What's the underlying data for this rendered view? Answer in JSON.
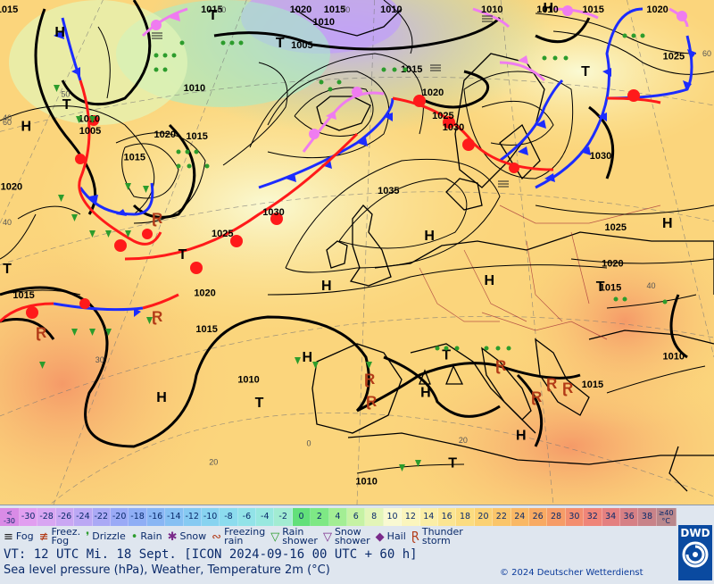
{
  "map": {
    "pressure_centers": [
      {
        "type": "H",
        "lon": -26,
        "lat": 60
      },
      {
        "type": "H",
        "lon": -15,
        "lat": 38
      },
      {
        "type": "H",
        "lon": 0,
        "lat": 42
      },
      {
        "type": "H",
        "lon": 2,
        "lat": 48
      },
      {
        "type": "H",
        "lon": 12,
        "lat": 39
      },
      {
        "type": "H",
        "lon": 12,
        "lat": 52
      },
      {
        "type": "H",
        "lon": 18,
        "lat": 48
      },
      {
        "type": "H",
        "lon": 22,
        "lat": 35
      },
      {
        "type": "H",
        "lon": 35,
        "lat": 52
      },
      {
        "type": "H",
        "lon": -22,
        "lat": 68
      },
      {
        "type": "H",
        "lon": 22,
        "lat": 74
      },
      {
        "type": "T",
        "lon": -22,
        "lat": 62
      },
      {
        "type": "T",
        "lon": -5,
        "lat": 38
      },
      {
        "type": "T",
        "lon": -30,
        "lat": 48
      },
      {
        "type": "T",
        "lon": -12,
        "lat": 50
      },
      {
        "type": "T",
        "lon": -2,
        "lat": 68
      },
      {
        "type": "T",
        "lon": 14,
        "lat": 42
      },
      {
        "type": "T",
        "lon": 26,
        "lat": 65
      },
      {
        "type": "T",
        "lon": 29,
        "lat": 47
      },
      {
        "type": "T",
        "lon": 15,
        "lat": 33
      },
      {
        "type": "T",
        "lon": -8,
        "lat": 70
      }
    ],
    "isobar_labels": [
      {
        "text": "1015",
        "lon": -28,
        "lat": 70
      },
      {
        "text": "1015",
        "lon": -16,
        "lat": 58
      },
      {
        "text": "1010",
        "lon": -20,
        "lat": 61
      },
      {
        "text": "1005",
        "lon": -20,
        "lat": 60
      },
      {
        "text": "1020",
        "lon": -13,
        "lat": 60
      },
      {
        "text": "1020",
        "lon": -28,
        "lat": 55
      },
      {
        "text": "1015",
        "lon": -28,
        "lat": 46
      },
      {
        "text": "1015",
        "lon": -8,
        "lat": 72
      },
      {
        "text": "1020",
        "lon": 0,
        "lat": 74
      },
      {
        "text": "1010",
        "lon": 8,
        "lat": 78
      },
      {
        "text": "1015",
        "lon": 3,
        "lat": 72
      },
      {
        "text": "1010",
        "lon": 2,
        "lat": 70
      },
      {
        "text": "1005",
        "lon": 0,
        "lat": 68
      },
      {
        "text": "1010",
        "lon": -10,
        "lat": 64
      },
      {
        "text": "1015",
        "lon": -10,
        "lat": 60
      },
      {
        "text": "1015",
        "lon": 10,
        "lat": 66
      },
      {
        "text": "1020",
        "lon": 12,
        "lat": 64
      },
      {
        "text": "1025",
        "lon": 13,
        "lat": 62
      },
      {
        "text": "1030",
        "lon": 14,
        "lat": 61
      },
      {
        "text": "1035",
        "lon": 8,
        "lat": 56
      },
      {
        "text": "1030",
        "lon": -3,
        "lat": 54
      },
      {
        "text": "1025",
        "lon": -8,
        "lat": 52
      },
      {
        "text": "1020",
        "lon": -10,
        "lat": 47
      },
      {
        "text": "1015",
        "lon": -10,
        "lat": 44
      },
      {
        "text": "1010",
        "lon": -6,
        "lat": 40
      },
      {
        "text": "1030",
        "lon": 28,
        "lat": 58
      },
      {
        "text": "1025",
        "lon": 30,
        "lat": 52
      },
      {
        "text": "1020",
        "lon": 30,
        "lat": 49
      },
      {
        "text": "1015",
        "lon": 30,
        "lat": 47
      },
      {
        "text": "1015",
        "lon": 29,
        "lat": 39
      },
      {
        "text": "1010",
        "lon": 37,
        "lat": 41
      },
      {
        "text": "1010",
        "lon": 6,
        "lat": 32
      },
      {
        "text": "1010",
        "lon": 17,
        "lat": 74
      },
      {
        "text": "1015",
        "lon": 26,
        "lat": 74
      },
      {
        "text": "1020",
        "lon": 32,
        "lat": 71
      },
      {
        "text": "1025",
        "lon": 34,
        "lat": 66
      },
      {
        "text": "1010",
        "lon": 22,
        "lat": 73
      }
    ],
    "graticule_labels": [
      {
        "text": "60",
        "lon": -37,
        "lat": 60
      },
      {
        "text": "50",
        "lon": -22,
        "lat": 63
      },
      {
        "text": "40",
        "lon": -45,
        "lat": 60
      },
      {
        "text": "40",
        "lon": -30,
        "lat": 52
      },
      {
        "text": "30",
        "lon": -21,
        "lat": 41
      },
      {
        "text": "20",
        "lon": -10,
        "lat": 33
      },
      {
        "text": "60",
        "lon": -7,
        "lat": 75
      },
      {
        "text": "70",
        "lon": 4,
        "lat": 76
      },
      {
        "text": "0",
        "lon": 0,
        "lat": 35
      },
      {
        "text": "20",
        "lon": 16,
        "lat": 35
      },
      {
        "text": "40",
        "lon": 34,
        "lat": 47
      },
      {
        "text": "60",
        "lon": 40,
        "lat": 66
      }
    ]
  },
  "legend": {
    "scale": [
      {
        "label": "<\n-30",
        "color": "#d98be6"
      },
      {
        "label": "-30",
        "color": "#e19ff0"
      },
      {
        "label": "-28",
        "color": "#d8a6f2"
      },
      {
        "label": "-26",
        "color": "#caa7f3"
      },
      {
        "label": "-24",
        "color": "#bba8f4"
      },
      {
        "label": "-22",
        "color": "#aaa9f5"
      },
      {
        "label": "-20",
        "color": "#9aaaf6"
      },
      {
        "label": "-18",
        "color": "#8faef5"
      },
      {
        "label": "-16",
        "color": "#89b6f4"
      },
      {
        "label": "-14",
        "color": "#86c0f3"
      },
      {
        "label": "-12",
        "color": "#86caf2"
      },
      {
        "label": "-10",
        "color": "#88d3f0"
      },
      {
        "label": "-8",
        "color": "#8cdcee"
      },
      {
        "label": "-6",
        "color": "#92e3e8"
      },
      {
        "label": "-4",
        "color": "#98e8df"
      },
      {
        "label": "-2",
        "color": "#a2ecd2"
      },
      {
        "label": "0",
        "color": "#62e07a"
      },
      {
        "label": "2",
        "color": "#7ee885"
      },
      {
        "label": "4",
        "color": "#a3ee94"
      },
      {
        "label": "6",
        "color": "#c6f2a4"
      },
      {
        "label": "8",
        "color": "#e3f5b8"
      },
      {
        "label": "10",
        "color": "#f9f9d2"
      },
      {
        "label": "12",
        "color": "#fbf5bd"
      },
      {
        "label": "14",
        "color": "#fbeea6"
      },
      {
        "label": "16",
        "color": "#fbe592"
      },
      {
        "label": "18",
        "color": "#fbdc80"
      },
      {
        "label": "20",
        "color": "#fbd173"
      },
      {
        "label": "22",
        "color": "#fac56a"
      },
      {
        "label": "24",
        "color": "#f9b865"
      },
      {
        "label": "26",
        "color": "#f8aa63"
      },
      {
        "label": "28",
        "color": "#f69c67"
      },
      {
        "label": "30",
        "color": "#f38e6f"
      },
      {
        "label": "32",
        "color": "#ef8579"
      },
      {
        "label": "34",
        "color": "#e48080"
      },
      {
        "label": "36",
        "color": "#d68085"
      },
      {
        "label": "38",
        "color": "#c88389"
      },
      {
        "label": "≥40\n°C",
        "color": "#b9878c"
      }
    ],
    "weather": [
      {
        "icon": "fog-icon",
        "glyph": "≡",
        "label": "Fog"
      },
      {
        "icon": "freezing-fog-icon",
        "glyph": "≢",
        "label": "Freez.\nFog"
      },
      {
        "icon": "drizzle-icon",
        "glyph": "❜",
        "label": "Drizzle"
      },
      {
        "icon": "rain-icon",
        "glyph": "•",
        "label": "Rain"
      },
      {
        "icon": "snow-icon",
        "glyph": "✱",
        "label": "Snow"
      },
      {
        "icon": "freezing-rain-icon",
        "glyph": "∾",
        "label": "Freezing\nrain"
      },
      {
        "icon": "rain-shower-icon",
        "glyph": "▽",
        "label": "Rain\nshower"
      },
      {
        "icon": "snow-shower-icon",
        "glyph": "▽",
        "label": "Snow\nshower"
      },
      {
        "icon": "hail-icon",
        "glyph": "◆",
        "label": "Hail"
      },
      {
        "icon": "thunderstorm-icon",
        "glyph": "Ɽ",
        "label": "Thunder\nstorm"
      }
    ],
    "valid_time": "VT: 12 UTC Mi.  18 Sept. [ICON 2024-09-16  00 UTC + 60 h]",
    "description": "Sea level pressure (hPa), Weather, Temperature 2m (°C)",
    "copyright": "© 2024 Deutscher Wetterdienst",
    "logo_text": "DWD"
  }
}
